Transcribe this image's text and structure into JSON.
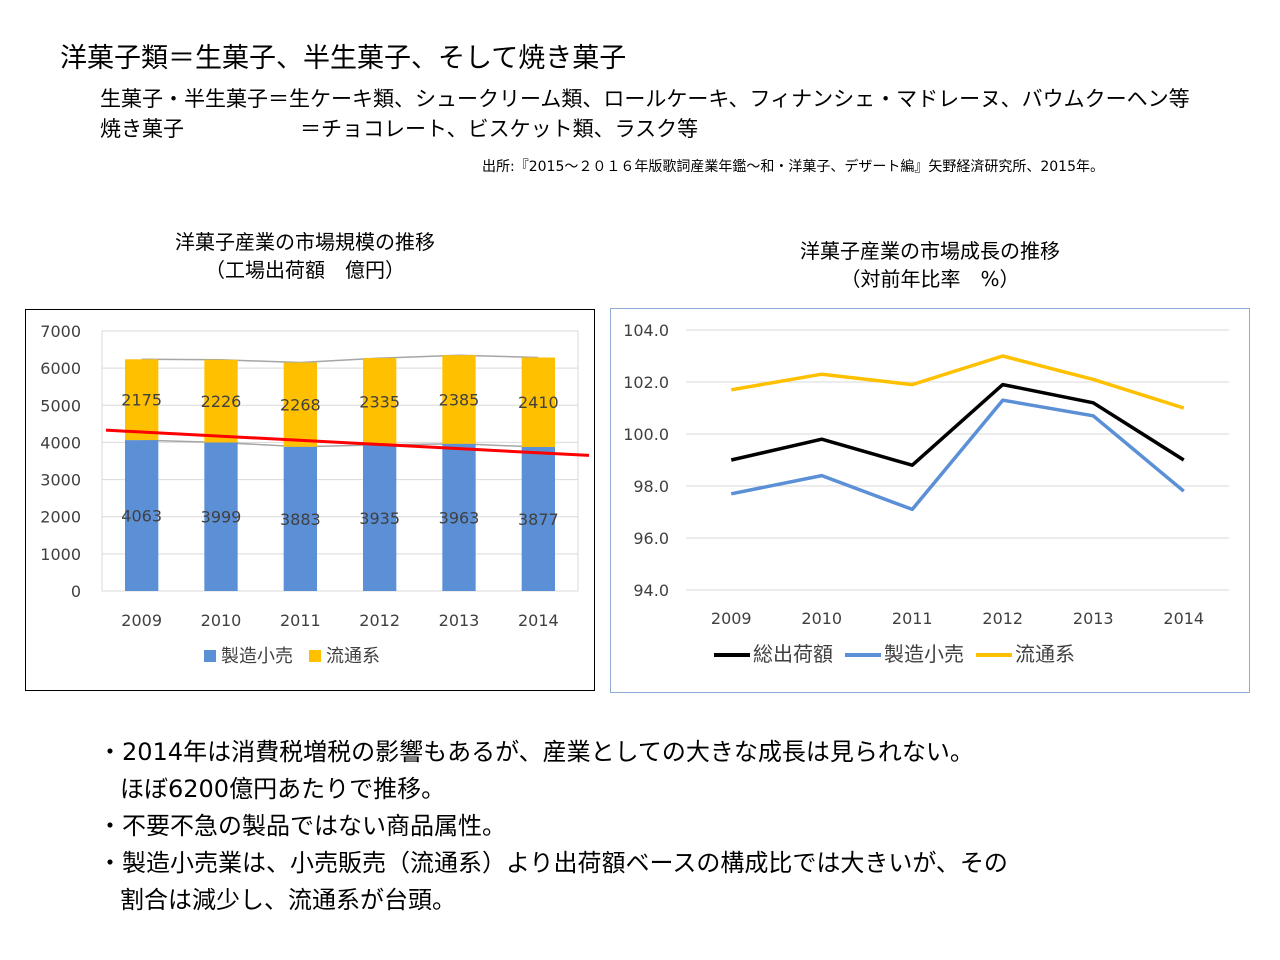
{
  "header": {
    "title": "洋菓子類＝生菓子、半生菓子、そして焼き菓子",
    "def1": "生菓子・半生菓子＝生ケーキ類、シュークリーム類、ロールケーキ、フィナンシェ・マドレーヌ、バウムクーヘン等",
    "def2_label": "焼き菓子",
    "def2_text": "＝チョコレート、ビスケット類、ラスク等",
    "source": "出所:『2015～２０１６年版歌詞産業年鑑～和・洋菓子、デザート編』矢野経済研究所、2015年。"
  },
  "chart1": {
    "title_line1": "洋菓子産業の市場規模の推移",
    "title_line2": "（工場出荷額　億円）"
  },
  "chart2": {
    "title_line1": "洋菓子産業の市場成長の推移",
    "title_line2": "（対前年比率　%）"
  },
  "chart_data": [
    {
      "type": "bar",
      "stacked": true,
      "title": "洋菓子産業の市場規模の推移（工場出荷額　億円）",
      "categories": [
        "2009",
        "2010",
        "2011",
        "2012",
        "2013",
        "2014"
      ],
      "series": [
        {
          "name": "製造小売",
          "values": [
            4063,
            3999,
            3883,
            3935,
            3963,
            3877
          ],
          "color": "#5b8fd6"
        },
        {
          "name": "流通系",
          "values": [
            2175,
            2226,
            2268,
            2335,
            2385,
            2410
          ],
          "color": "#ffc000"
        }
      ],
      "trendline": {
        "color": "#ff0000",
        "from": 4330,
        "to": 3650
      },
      "ylim": [
        0,
        7000
      ],
      "yticks": [
        "0",
        "1000",
        "2000",
        "3000",
        "4000",
        "5000",
        "6000",
        "7000"
      ],
      "grid": true,
      "legend": "bottom"
    },
    {
      "type": "line",
      "title": "洋菓子産業の市場成長の推移（対前年比率　%）",
      "categories": [
        "2009",
        "2010",
        "2011",
        "2012",
        "2013",
        "2014"
      ],
      "series": [
        {
          "name": "総出荷額",
          "values": [
            99.0,
            99.8,
            98.8,
            101.9,
            101.2,
            99.0
          ],
          "color": "#000000"
        },
        {
          "name": "製造小売",
          "values": [
            97.7,
            98.4,
            97.1,
            101.3,
            100.7,
            97.8
          ],
          "color": "#5b8fd6"
        },
        {
          "name": "流通系",
          "values": [
            101.7,
            102.3,
            101.9,
            103.0,
            102.1,
            101.0
          ],
          "color": "#ffc000"
        }
      ],
      "ylim": [
        94.0,
        104.0
      ],
      "yticks": [
        "94.0",
        "96.0",
        "98.0",
        "100.0",
        "102.0",
        "104.0"
      ],
      "grid": true,
      "legend": "bottom"
    }
  ],
  "bullets": {
    "b1_line1": "・2014年は消費税増税の影響もあるが、産業としての大きな成長は見られない。",
    "b1_line2": "ほぼ6200億円あたりで推移。",
    "b2": "・不要不急の製品ではない商品属性。",
    "b3_line1": "・製造小売業は、小売販売（流通系）より出荷額ベースの構成比では大きいが、その",
    "b3_line2": "割合は減少し、流通系が台頭。"
  }
}
